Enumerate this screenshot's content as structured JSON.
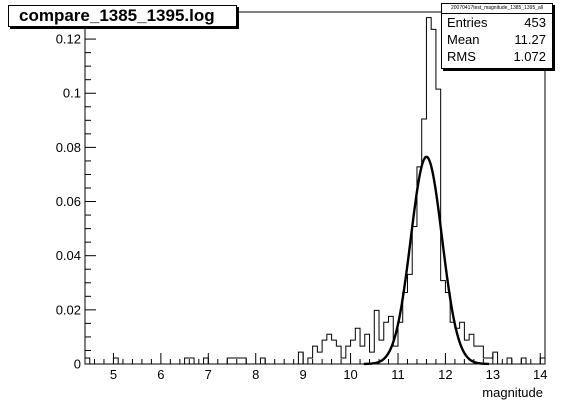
{
  "title_box": {
    "text": "compare_1385_1395.log"
  },
  "stats": {
    "name": "20070417test_magnitude_1385_1395_all",
    "rows": [
      {
        "label": "Entries",
        "value": "453"
      },
      {
        "label": "Mean",
        "value": "11.27"
      },
      {
        "label": "RMS",
        "value": "1.072"
      }
    ]
  },
  "chart_data": {
    "type": "histogram",
    "xlabel": "magnitude",
    "ylabel": "",
    "xlim": [
      4.4,
      14.1
    ],
    "ylim": [
      0,
      0.13
    ],
    "x_ticks": [
      5,
      6,
      7,
      8,
      9,
      10,
      11,
      12,
      13,
      14
    ],
    "y_ticks": [
      0,
      0.02,
      0.04,
      0.06,
      0.08,
      0.1,
      0.12
    ],
    "y_tick_labels": [
      "0",
      "0.02",
      "0.04",
      "0.06",
      "0.08",
      "0.1",
      "0.12"
    ],
    "bin_width": 0.1,
    "bins": [
      [
        4.4,
        0.0022
      ],
      [
        4.5,
        0
      ],
      [
        4.6,
        0
      ],
      [
        4.7,
        0
      ],
      [
        4.8,
        0
      ],
      [
        4.9,
        0
      ],
      [
        5.0,
        0.0022
      ],
      [
        5.1,
        0
      ],
      [
        5.2,
        0
      ],
      [
        5.3,
        0
      ],
      [
        5.4,
        0
      ],
      [
        5.5,
        0
      ],
      [
        5.6,
        0
      ],
      [
        5.7,
        0
      ],
      [
        5.8,
        0
      ],
      [
        5.9,
        0
      ],
      [
        6.0,
        0
      ],
      [
        6.1,
        0
      ],
      [
        6.2,
        0
      ],
      [
        6.3,
        0
      ],
      [
        6.4,
        0
      ],
      [
        6.5,
        0.0022
      ],
      [
        6.6,
        0.0022
      ],
      [
        6.7,
        0
      ],
      [
        6.8,
        0
      ],
      [
        6.9,
        0.0022
      ],
      [
        7.0,
        0
      ],
      [
        7.1,
        0
      ],
      [
        7.2,
        0
      ],
      [
        7.3,
        0
      ],
      [
        7.4,
        0.0022
      ],
      [
        7.5,
        0.0022
      ],
      [
        7.6,
        0.0022
      ],
      [
        7.7,
        0.0022
      ],
      [
        7.8,
        0
      ],
      [
        7.9,
        0
      ],
      [
        8.0,
        0
      ],
      [
        8.1,
        0.0022
      ],
      [
        8.2,
        0
      ],
      [
        8.3,
        0
      ],
      [
        8.4,
        0
      ],
      [
        8.5,
        0
      ],
      [
        8.6,
        0
      ],
      [
        8.7,
        0
      ],
      [
        8.8,
        0
      ],
      [
        8.9,
        0.0044
      ],
      [
        9.0,
        0
      ],
      [
        9.1,
        0.0022
      ],
      [
        9.2,
        0.0066
      ],
      [
        9.3,
        0.0044
      ],
      [
        9.4,
        0.0088
      ],
      [
        9.5,
        0.011
      ],
      [
        9.6,
        0.0088
      ],
      [
        9.7,
        0.0066
      ],
      [
        9.8,
        0.0022
      ],
      [
        9.9,
        0.0066
      ],
      [
        10.0,
        0.0088
      ],
      [
        10.1,
        0.0132
      ],
      [
        10.2,
        0.0066
      ],
      [
        10.3,
        0.011
      ],
      [
        10.4,
        0.0044
      ],
      [
        10.5,
        0.0198
      ],
      [
        10.6,
        0.0088
      ],
      [
        10.7,
        0.0154
      ],
      [
        10.8,
        0.0176
      ],
      [
        10.9,
        0.0066
      ],
      [
        11.0,
        0.0154
      ],
      [
        11.1,
        0.0264
      ],
      [
        11.2,
        0.0331
      ],
      [
        11.3,
        0.0508
      ],
      [
        11.4,
        0.0728
      ],
      [
        11.5,
        0.0905
      ],
      [
        11.6,
        0.1279
      ],
      [
        11.7,
        0.1236
      ],
      [
        11.8,
        0.1015
      ],
      [
        11.9,
        0.0308
      ],
      [
        12.0,
        0.0264
      ],
      [
        12.1,
        0.0154
      ],
      [
        12.2,
        0.0132
      ],
      [
        12.3,
        0.0154
      ],
      [
        12.4,
        0.0088
      ],
      [
        12.5,
        0.011
      ],
      [
        12.6,
        0.0066
      ],
      [
        12.7,
        0.0066
      ],
      [
        12.8,
        0.0022
      ],
      [
        12.9,
        0.0022
      ],
      [
        13.0,
        0.0044
      ],
      [
        13.1,
        0
      ],
      [
        13.2,
        0
      ],
      [
        13.3,
        0.0022
      ],
      [
        13.4,
        0
      ],
      [
        13.5,
        0
      ],
      [
        13.6,
        0.0022
      ],
      [
        13.7,
        0
      ],
      [
        13.8,
        0
      ],
      [
        13.9,
        0
      ],
      [
        14.0,
        0.0022
      ]
    ],
    "fit": {
      "type": "gaussian",
      "constant": 0.0765,
      "mean": 11.6,
      "sigma": 0.33
    },
    "grid": false,
    "legend": "top-right"
  }
}
